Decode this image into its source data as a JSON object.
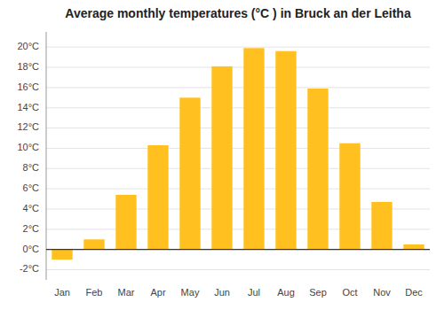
{
  "chart_data": {
    "type": "bar",
    "title": "Average monthly temperatures (°C ) in Bruck an der Leitha",
    "categories": [
      "Jan",
      "Feb",
      "Mar",
      "Apr",
      "May",
      "Jun",
      "Jul",
      "Aug",
      "Sep",
      "Oct",
      "Nov",
      "Dec"
    ],
    "values": [
      -1.0,
      1.0,
      5.4,
      10.3,
      15.0,
      18.1,
      19.9,
      19.6,
      15.9,
      10.5,
      4.7,
      0.5
    ],
    "color": "#FFC020",
    "ylim": [
      -3.0,
      21.5
    ],
    "yticks": [
      {
        "value": -2,
        "label": "-2°C"
      },
      {
        "value": 0,
        "label": "0°C"
      },
      {
        "value": 2,
        "label": "2°C"
      },
      {
        "value": 4,
        "label": "4°C"
      },
      {
        "value": 6,
        "label": "6°C"
      },
      {
        "value": 8,
        "label": "8°C"
      },
      {
        "value": 10,
        "label": "10°C"
      },
      {
        "value": 12,
        "label": "12°C"
      },
      {
        "value": 14,
        "label": "14°C"
      },
      {
        "value": 16,
        "label": "16°C"
      },
      {
        "value": 18,
        "label": "18°C"
      },
      {
        "value": 20,
        "label": "20°C"
      }
    ],
    "grid": true
  }
}
